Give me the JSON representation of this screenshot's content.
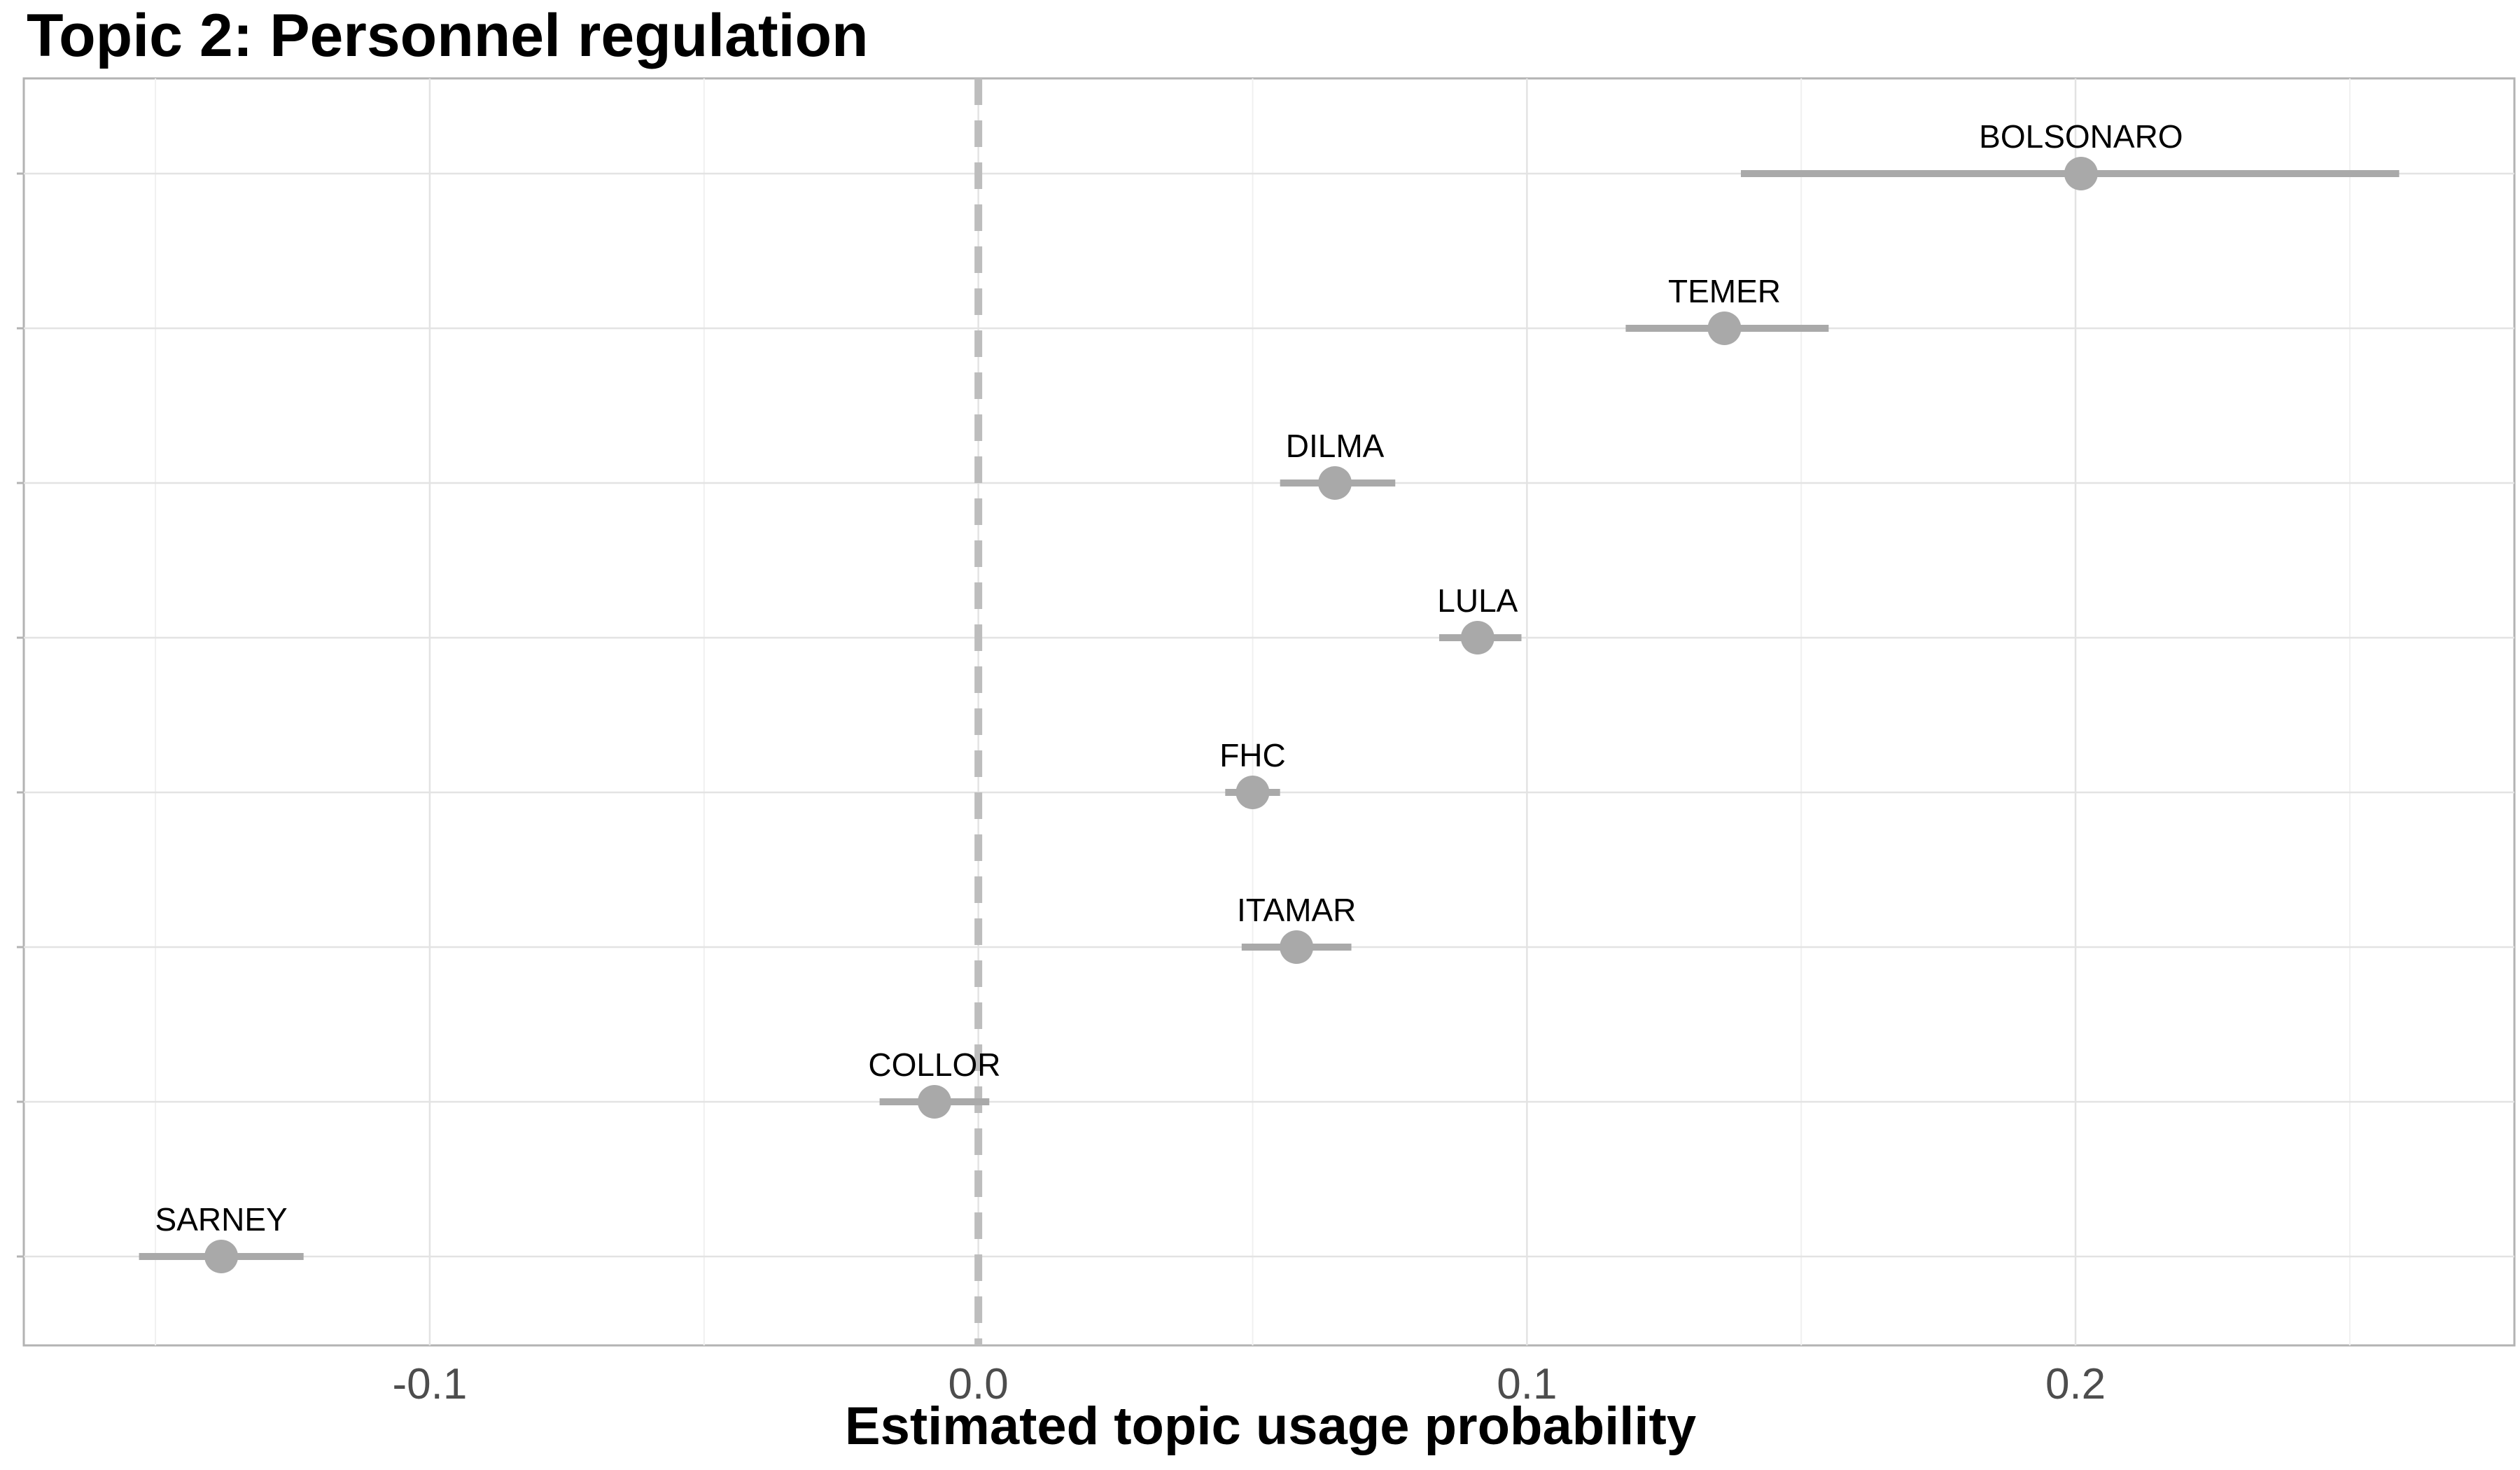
{
  "chart_data": {
    "type": "scatter",
    "title": "Topic 2: Personnel regulation",
    "xlabel": "Estimated topic usage probability",
    "ylabel": "",
    "xlim": [
      -0.174,
      0.28
    ],
    "xticks": [
      -0.1,
      0.0,
      0.1,
      0.2
    ],
    "xtick_labels": [
      "-0.1",
      "0.0",
      "0.1",
      "0.2"
    ],
    "reference_line": 0.0,
    "grid": true,
    "point_color": "#a9a9a9",
    "reference_line_color": "#bdbdbd",
    "points": [
      {
        "label": "BOLSONARO",
        "estimate": 0.201,
        "lower": 0.139,
        "upper": 0.259
      },
      {
        "label": "TEMER",
        "estimate": 0.136,
        "lower": 0.118,
        "upper": 0.155
      },
      {
        "label": "DILMA",
        "estimate": 0.065,
        "lower": 0.055,
        "upper": 0.076
      },
      {
        "label": "LULA",
        "estimate": 0.091,
        "lower": 0.084,
        "upper": 0.099
      },
      {
        "label": "FHC",
        "estimate": 0.05,
        "lower": 0.045,
        "upper": 0.055
      },
      {
        "label": "ITAMAR",
        "estimate": 0.058,
        "lower": 0.048,
        "upper": 0.068
      },
      {
        "label": "COLLOR",
        "estimate": -0.008,
        "lower": -0.018,
        "upper": 0.002
      },
      {
        "label": "SARNEY",
        "estimate": -0.138,
        "lower": -0.153,
        "upper": -0.123
      }
    ]
  }
}
